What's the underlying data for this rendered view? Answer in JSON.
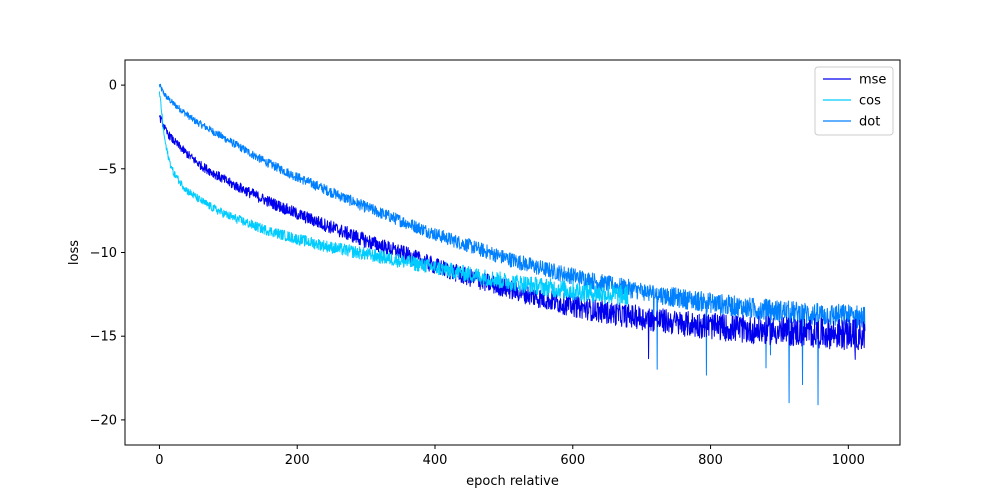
{
  "chart_data": {
    "type": "line",
    "title": "",
    "xlabel": "epoch relative",
    "ylabel": "loss",
    "xlim": [
      -50,
      1075
    ],
    "ylim": [
      -21.5,
      1.5
    ],
    "xticks": [
      0,
      200,
      400,
      600,
      800,
      1000
    ],
    "yticks": [
      0,
      -5,
      -10,
      -15,
      -20
    ],
    "xtick_labels": [
      "0",
      "200",
      "400",
      "600",
      "800",
      "1000"
    ],
    "ytick_labels": [
      "0",
      "−5",
      "−10",
      "−15",
      "−20"
    ],
    "grid": false,
    "legend_position": "top-right",
    "series": [
      {
        "name": "mse",
        "color": "#0000ee",
        "end_x": 1024,
        "points": [
          [
            0,
            -1.9
          ],
          [
            5,
            -2.3
          ],
          [
            10,
            -2.8
          ],
          [
            20,
            -3.3
          ],
          [
            40,
            -4.1
          ],
          [
            60,
            -4.8
          ],
          [
            80,
            -5.3
          ],
          [
            100,
            -5.8
          ],
          [
            150,
            -6.8
          ],
          [
            200,
            -7.7
          ],
          [
            250,
            -8.5
          ],
          [
            300,
            -9.3
          ],
          [
            350,
            -10.0
          ],
          [
            400,
            -10.8
          ],
          [
            450,
            -11.5
          ],
          [
            500,
            -12.1
          ],
          [
            550,
            -12.7
          ],
          [
            600,
            -13.2
          ],
          [
            650,
            -13.6
          ],
          [
            700,
            -13.9
          ],
          [
            750,
            -14.2
          ],
          [
            800,
            -14.4
          ],
          [
            850,
            -14.6
          ],
          [
            900,
            -14.7
          ],
          [
            950,
            -14.8
          ],
          [
            1000,
            -14.9
          ],
          [
            1024,
            -14.9
          ]
        ]
      },
      {
        "name": "cos",
        "color": "#00ccff",
        "end_x": 680,
        "points": [
          [
            0,
            -0.4
          ],
          [
            3,
            -1.5
          ],
          [
            6,
            -2.8
          ],
          [
            10,
            -3.8
          ],
          [
            15,
            -4.6
          ],
          [
            20,
            -5.2
          ],
          [
            30,
            -5.8
          ],
          [
            40,
            -6.3
          ],
          [
            60,
            -6.9
          ],
          [
            80,
            -7.4
          ],
          [
            100,
            -7.8
          ],
          [
            150,
            -8.6
          ],
          [
            200,
            -9.2
          ],
          [
            250,
            -9.7
          ],
          [
            300,
            -10.1
          ],
          [
            350,
            -10.5
          ],
          [
            400,
            -10.9
          ],
          [
            450,
            -11.3
          ],
          [
            500,
            -11.7
          ],
          [
            550,
            -12.0
          ],
          [
            600,
            -12.3
          ],
          [
            650,
            -12.5
          ],
          [
            680,
            -12.6
          ]
        ]
      },
      {
        "name": "dot",
        "color": "#0080ff",
        "end_x": 1024,
        "points": [
          [
            0,
            0.0
          ],
          [
            5,
            -0.4
          ],
          [
            10,
            -0.7
          ],
          [
            20,
            -1.1
          ],
          [
            50,
            -2.1
          ],
          [
            100,
            -3.3
          ],
          [
            150,
            -4.5
          ],
          [
            200,
            -5.5
          ],
          [
            250,
            -6.4
          ],
          [
            300,
            -7.3
          ],
          [
            350,
            -8.1
          ],
          [
            400,
            -8.9
          ],
          [
            450,
            -9.6
          ],
          [
            500,
            -10.3
          ],
          [
            550,
            -10.9
          ],
          [
            600,
            -11.4
          ],
          [
            650,
            -11.9
          ],
          [
            700,
            -12.3
          ],
          [
            750,
            -12.7
          ],
          [
            800,
            -13.0
          ],
          [
            850,
            -13.3
          ],
          [
            900,
            -13.5
          ],
          [
            950,
            -13.7
          ],
          [
            1000,
            -13.8
          ],
          [
            1024,
            -13.9
          ]
        ]
      }
    ]
  }
}
